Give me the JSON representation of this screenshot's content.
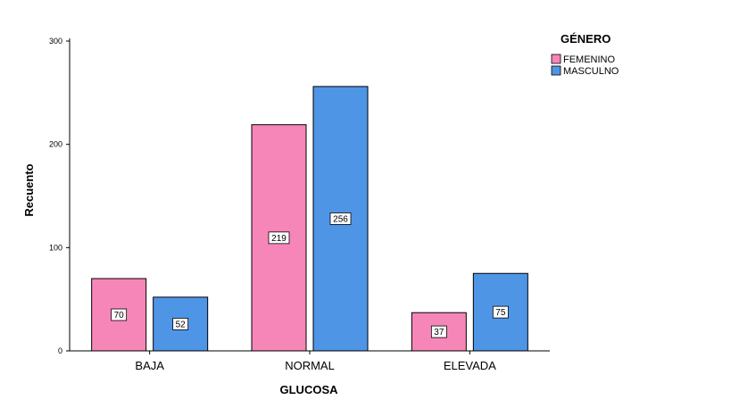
{
  "chart_data": {
    "type": "bar",
    "title": "",
    "xlabel": "GLUCOSA",
    "ylabel": "Recuento",
    "categories": [
      "BAJA",
      "NORMAL",
      "ELEVADA"
    ],
    "ylim": [
      0,
      300
    ],
    "yticks": [
      0,
      100,
      200,
      300
    ],
    "grid": false,
    "legend_placement": "top-right",
    "legend_title": "GÉNERO",
    "series": [
      {
        "name": "FEMENINO",
        "color": "#f786b8",
        "values": [
          70,
          219,
          37
        ]
      },
      {
        "name": "MASCULNO",
        "color": "#4f95e6",
        "values": [
          52,
          256,
          75
        ]
      }
    ]
  }
}
